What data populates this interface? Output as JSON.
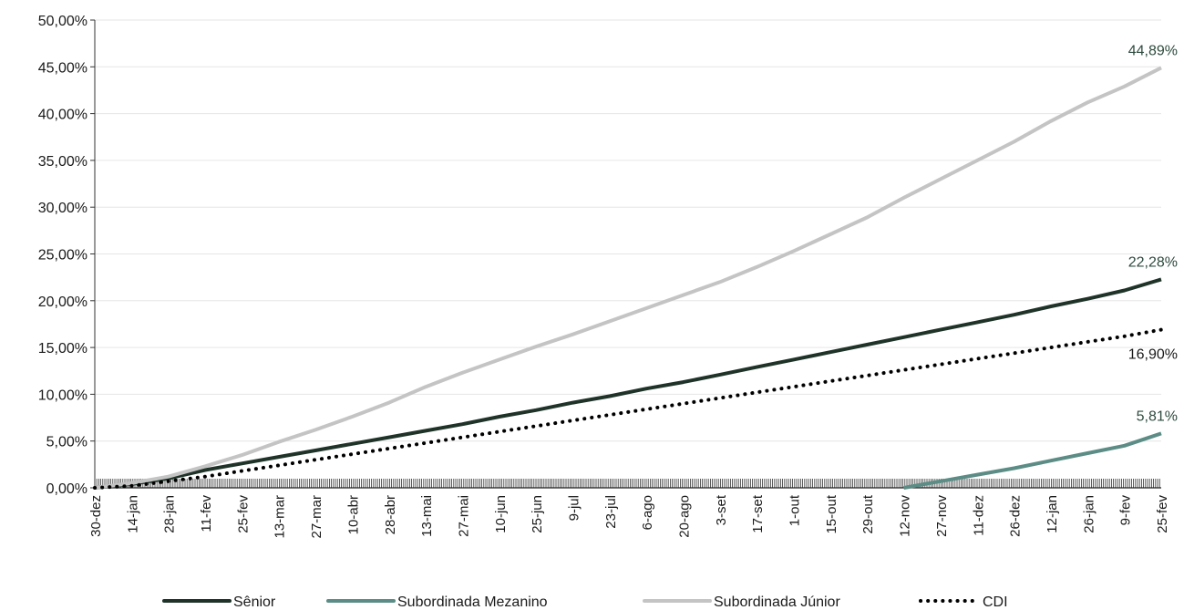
{
  "chart_data": {
    "type": "line",
    "title": "",
    "xlabel": "",
    "ylabel": "",
    "ylim": [
      0,
      50
    ],
    "yticks": [
      0,
      5,
      10,
      15,
      20,
      25,
      30,
      35,
      40,
      45,
      50
    ],
    "ytick_labels": [
      "0,00%",
      "5,00%",
      "10,00%",
      "15,00%",
      "20,00%",
      "25,00%",
      "30,00%",
      "35,00%",
      "40,00%",
      "45,00%",
      "50,00%"
    ],
    "x_tick_labels": [
      "30-dez",
      "14-jan",
      "28-jan",
      "11-fev",
      "25-fev",
      "13-mar",
      "27-mar",
      "10-abr",
      "28-abr",
      "13-mai",
      "27-mai",
      "10-jun",
      "25-jun",
      "9-jul",
      "23-jul",
      "6-ago",
      "20-ago",
      "3-set",
      "17-set",
      "1-out",
      "15-out",
      "29-out",
      "12-nov",
      "27-nov",
      "11-dez",
      "26-dez",
      "12-jan",
      "26-jan",
      "9-fev",
      "25-fev"
    ],
    "grid": "horizontal",
    "legend_position": "bottom",
    "series": [
      {
        "name": "Sênior",
        "color": "#1f3329",
        "style": "solid",
        "end_label": "22,28%",
        "points": [
          [
            0,
            0
          ],
          [
            1,
            0.4
          ],
          [
            2,
            1.0
          ],
          [
            3,
            1.9
          ],
          [
            4,
            2.6
          ],
          [
            5,
            3.3
          ],
          [
            6,
            4.0
          ],
          [
            7,
            4.7
          ],
          [
            8,
            5.4
          ],
          [
            9,
            6.1
          ],
          [
            10,
            6.8
          ],
          [
            11,
            7.6
          ],
          [
            12,
            8.3
          ],
          [
            13,
            9.1
          ],
          [
            14,
            9.8
          ],
          [
            15,
            10.6
          ],
          [
            16,
            11.3
          ],
          [
            17,
            12.1
          ],
          [
            18,
            12.9
          ],
          [
            19,
            13.7
          ],
          [
            20,
            14.5
          ],
          [
            21,
            15.3
          ],
          [
            22,
            16.1
          ],
          [
            23,
            16.9
          ],
          [
            24,
            17.7
          ],
          [
            25,
            18.5
          ],
          [
            26,
            19.4
          ],
          [
            27,
            20.2
          ],
          [
            28,
            21.1
          ],
          [
            29,
            22.28
          ]
        ]
      },
      {
        "name": "Subordinada Mezanino",
        "color": "#5b8c85",
        "style": "solid",
        "end_label": "5,81%",
        "points": [
          [
            22,
            0
          ],
          [
            23,
            0.7
          ],
          [
            24,
            1.4
          ],
          [
            25,
            2.1
          ],
          [
            26,
            2.9
          ],
          [
            27,
            3.7
          ],
          [
            28,
            4.5
          ],
          [
            29,
            5.81
          ]
        ]
      },
      {
        "name": "Subordinada Júnior",
        "color": "#c4c4c4",
        "style": "solid",
        "end_label": "44,89%",
        "points": [
          [
            0,
            0
          ],
          [
            1,
            0.5
          ],
          [
            2,
            1.2
          ],
          [
            3,
            2.3
          ],
          [
            4,
            3.5
          ],
          [
            5,
            4.9
          ],
          [
            6,
            6.2
          ],
          [
            7,
            7.6
          ],
          [
            8,
            9.1
          ],
          [
            9,
            10.8
          ],
          [
            10,
            12.3
          ],
          [
            11,
            13.7
          ],
          [
            12,
            15.1
          ],
          [
            13,
            16.4
          ],
          [
            14,
            17.8
          ],
          [
            15,
            19.2
          ],
          [
            16,
            20.6
          ],
          [
            17,
            22.0
          ],
          [
            18,
            23.6
          ],
          [
            19,
            25.3
          ],
          [
            20,
            27.1
          ],
          [
            21,
            28.9
          ],
          [
            22,
            31.0
          ],
          [
            23,
            33.0
          ],
          [
            24,
            35.0
          ],
          [
            25,
            37.0
          ],
          [
            26,
            39.2
          ],
          [
            27,
            41.2
          ],
          [
            28,
            42.9
          ],
          [
            29,
            44.89
          ]
        ]
      },
      {
        "name": "CDI",
        "color": "#000000",
        "style": "dotted",
        "end_label": "16,90%",
        "points": [
          [
            0,
            0
          ],
          [
            1,
            0.2
          ],
          [
            2,
            0.7
          ],
          [
            3,
            1.2
          ],
          [
            4,
            1.8
          ],
          [
            5,
            2.4
          ],
          [
            6,
            3.0
          ],
          [
            7,
            3.6
          ],
          [
            8,
            4.2
          ],
          [
            9,
            4.8
          ],
          [
            10,
            5.4
          ],
          [
            11,
            6.0
          ],
          [
            12,
            6.6
          ],
          [
            13,
            7.2
          ],
          [
            14,
            7.8
          ],
          [
            15,
            8.4
          ],
          [
            16,
            9.0
          ],
          [
            17,
            9.6
          ],
          [
            18,
            10.2
          ],
          [
            19,
            10.8
          ],
          [
            20,
            11.4
          ],
          [
            21,
            12.0
          ],
          [
            22,
            12.6
          ],
          [
            23,
            13.2
          ],
          [
            24,
            13.8
          ],
          [
            25,
            14.4
          ],
          [
            26,
            15.0
          ],
          [
            27,
            15.6
          ],
          [
            28,
            16.2
          ],
          [
            29,
            16.9
          ]
        ]
      }
    ]
  }
}
